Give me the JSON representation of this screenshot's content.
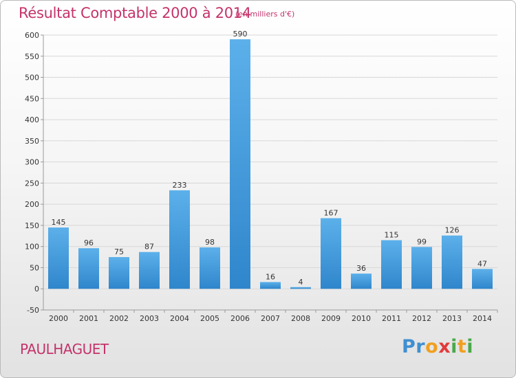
{
  "page": {
    "title": "Résultat Comptable 2000 à 2014",
    "subtitle": "(en milliers d'€)",
    "commune": "PAULHAGUET",
    "logo": {
      "letters": [
        {
          "char": "P",
          "color": "#3f8fd2"
        },
        {
          "char": "r",
          "color": "#3f8fd2"
        },
        {
          "char": "o",
          "color": "#f0a020"
        },
        {
          "char": "x",
          "color": "#e23a3a"
        },
        {
          "char": "i",
          "color": "#4aa84a"
        },
        {
          "char": "t",
          "color": "#f0a020"
        },
        {
          "char": "i",
          "color": "#4aa84a"
        }
      ]
    }
  },
  "chart_data": {
    "type": "bar",
    "categories": [
      "2000",
      "2001",
      "2002",
      "2003",
      "2004",
      "2005",
      "2006",
      "2007",
      "2008",
      "2009",
      "2010",
      "2011",
      "2012",
      "2013",
      "2014"
    ],
    "values": [
      145,
      96,
      75,
      87,
      233,
      98,
      590,
      16,
      4,
      167,
      36,
      115,
      99,
      126,
      47
    ],
    "value_labels": [
      "145",
      "96",
      "75",
      "87",
      "233",
      "98",
      "590",
      "16",
      "4",
      "167",
      "36",
      "115",
      "99",
      "126",
      "47"
    ],
    "ylim": [
      -50,
      600
    ],
    "yticks": [
      -50,
      0,
      50,
      100,
      150,
      200,
      250,
      300,
      350,
      400,
      450,
      500,
      550,
      600
    ],
    "ytick_labels": [
      "-50",
      "0",
      "50",
      "100",
      "150",
      "200",
      "250",
      "300",
      "350",
      "400",
      "450",
      "500",
      "550",
      "600"
    ],
    "grid": true,
    "colors": {
      "bar": "#2f86cb",
      "bar_light": "#5cb0ea",
      "grid": "#d7d7d7",
      "axis": "#999999"
    }
  }
}
